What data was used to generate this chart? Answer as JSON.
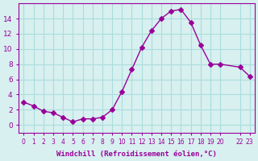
{
  "x": [
    0,
    1,
    2,
    3,
    4,
    5,
    6,
    7,
    8,
    9,
    10,
    11,
    12,
    13,
    14,
    15,
    16,
    17,
    18,
    19,
    20,
    22,
    23
  ],
  "y": [
    3.0,
    2.5,
    1.8,
    1.6,
    1.0,
    0.4,
    0.8,
    0.8,
    1.0,
    2.0,
    4.4,
    7.3,
    10.2,
    12.4,
    14.0,
    15.0,
    15.2,
    13.5,
    10.5,
    8.0,
    8.0,
    7.6,
    6.4
  ],
  "line_color": "#990099",
  "marker": "D",
  "marker_size": 3,
  "bg_color": "#d8f0f0",
  "grid_color": "#aadddd",
  "xlabel": "Windchill (Refroidissement éolien,°C)",
  "xlabel_color": "#990099",
  "tick_color": "#990099",
  "xlim": [
    -0.5,
    23.5
  ],
  "ylim": [
    -1,
    16
  ],
  "yticks": [
    0,
    2,
    4,
    6,
    8,
    10,
    12,
    14
  ],
  "xticks": [
    0,
    1,
    2,
    3,
    4,
    5,
    6,
    7,
    8,
    9,
    10,
    11,
    12,
    13,
    14,
    15,
    16,
    17,
    18,
    19,
    20,
    22,
    23
  ],
  "xtick_labels": [
    "0",
    "1",
    "2",
    "3",
    "4",
    "5",
    "6",
    "7",
    "8",
    "9",
    "10",
    "11",
    "12",
    "13",
    "14",
    "15",
    "16",
    "17",
    "18",
    "19",
    "20",
    "22",
    "23"
  ]
}
